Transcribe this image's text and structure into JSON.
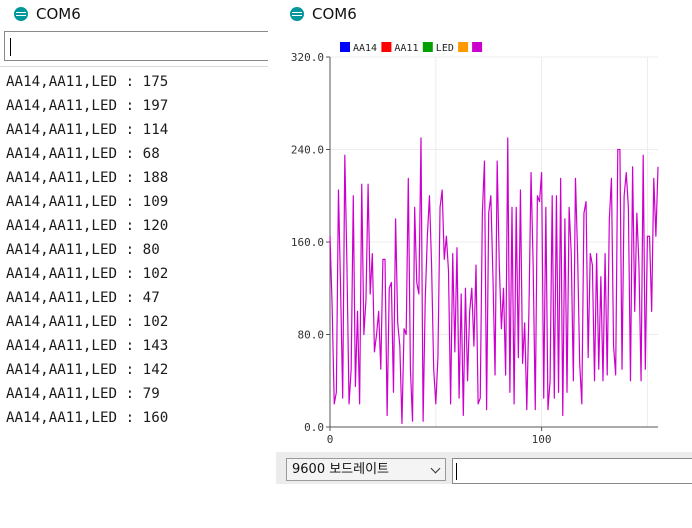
{
  "serial_monitor": {
    "title": "COM6",
    "lines": [
      "AA14,AA11,LED : 175",
      "AA14,AA11,LED : 197",
      "AA14,AA11,LED : 114",
      "AA14,AA11,LED : 68",
      "AA14,AA11,LED : 188",
      "AA14,AA11,LED : 109",
      "AA14,AA11,LED : 120",
      "AA14,AA11,LED : 80",
      "AA14,AA11,LED : 102",
      "AA14,AA11,LED : 47",
      "AA14,AA11,LED : 102",
      "AA14,AA11,LED : 143",
      "AA14,AA11,LED : 142",
      "AA14,AA11,LED : 79",
      "AA14,AA11,LED : 160"
    ]
  },
  "serial_plotter": {
    "title": "COM6",
    "baud_rate": "9600 보드레이트"
  },
  "chart_data": {
    "type": "line",
    "xlim": [
      0,
      155
    ],
    "ylim": [
      0,
      320
    ],
    "x_ticks": [
      "0",
      "100"
    ],
    "y_ticks": [
      "0.0",
      "80.0",
      "160.0",
      "240.0",
      "320.0"
    ],
    "grid": true,
    "legend_placement": "top-left",
    "legend": [
      {
        "label": "AA14",
        "color": "#0000ff"
      },
      {
        "label": "AA11",
        "color": "#ff0000"
      },
      {
        "label": "LED",
        "color": "#00a000"
      },
      {
        "label": "",
        "color": "#ff9900"
      },
      {
        "label": "",
        "color": "#cc00cc"
      }
    ],
    "series": [
      {
        "color": "#cc00cc",
        "x_start": 0,
        "values": [
          165,
          105,
          20,
          30,
          205,
          120,
          25,
          235,
          140,
          20,
          50,
          200,
          35,
          100,
          20,
          210,
          80,
          110,
          210,
          115,
          150,
          65,
          80,
          100,
          50,
          145,
          145,
          10,
          120,
          125,
          30,
          180,
          90,
          70,
          3,
          85,
          80,
          215,
          50,
          5,
          190,
          125,
          115,
          250,
          5,
          110,
          165,
          200,
          140,
          50,
          20,
          60,
          190,
          205,
          145,
          165,
          135,
          20,
          150,
          65,
          155,
          25,
          115,
          10,
          120,
          40,
          100,
          120,
          70,
          140,
          20,
          25,
          185,
          230,
          15,
          185,
          200,
          130,
          45,
          230,
          140,
          85,
          120,
          45,
          250,
          30,
          190,
          20,
          190,
          60,
          205,
          55,
          90,
          15,
          100,
          220,
          140,
          15,
          200,
          195,
          220,
          25,
          190,
          15,
          40,
          200,
          25,
          200,
          30,
          215,
          10,
          180,
          30,
          190,
          150,
          40,
          215,
          150,
          55,
          20,
          185,
          195,
          60,
          150,
          140,
          40,
          150,
          50,
          130,
          40,
          150,
          45,
          180,
          215,
          70,
          45,
          240,
          240,
          50,
          200,
          220,
          190,
          40,
          225,
          100,
          185,
          140,
          40,
          235,
          50,
          165,
          165,
          100,
          215,
          165,
          225
        ]
      }
    ]
  }
}
